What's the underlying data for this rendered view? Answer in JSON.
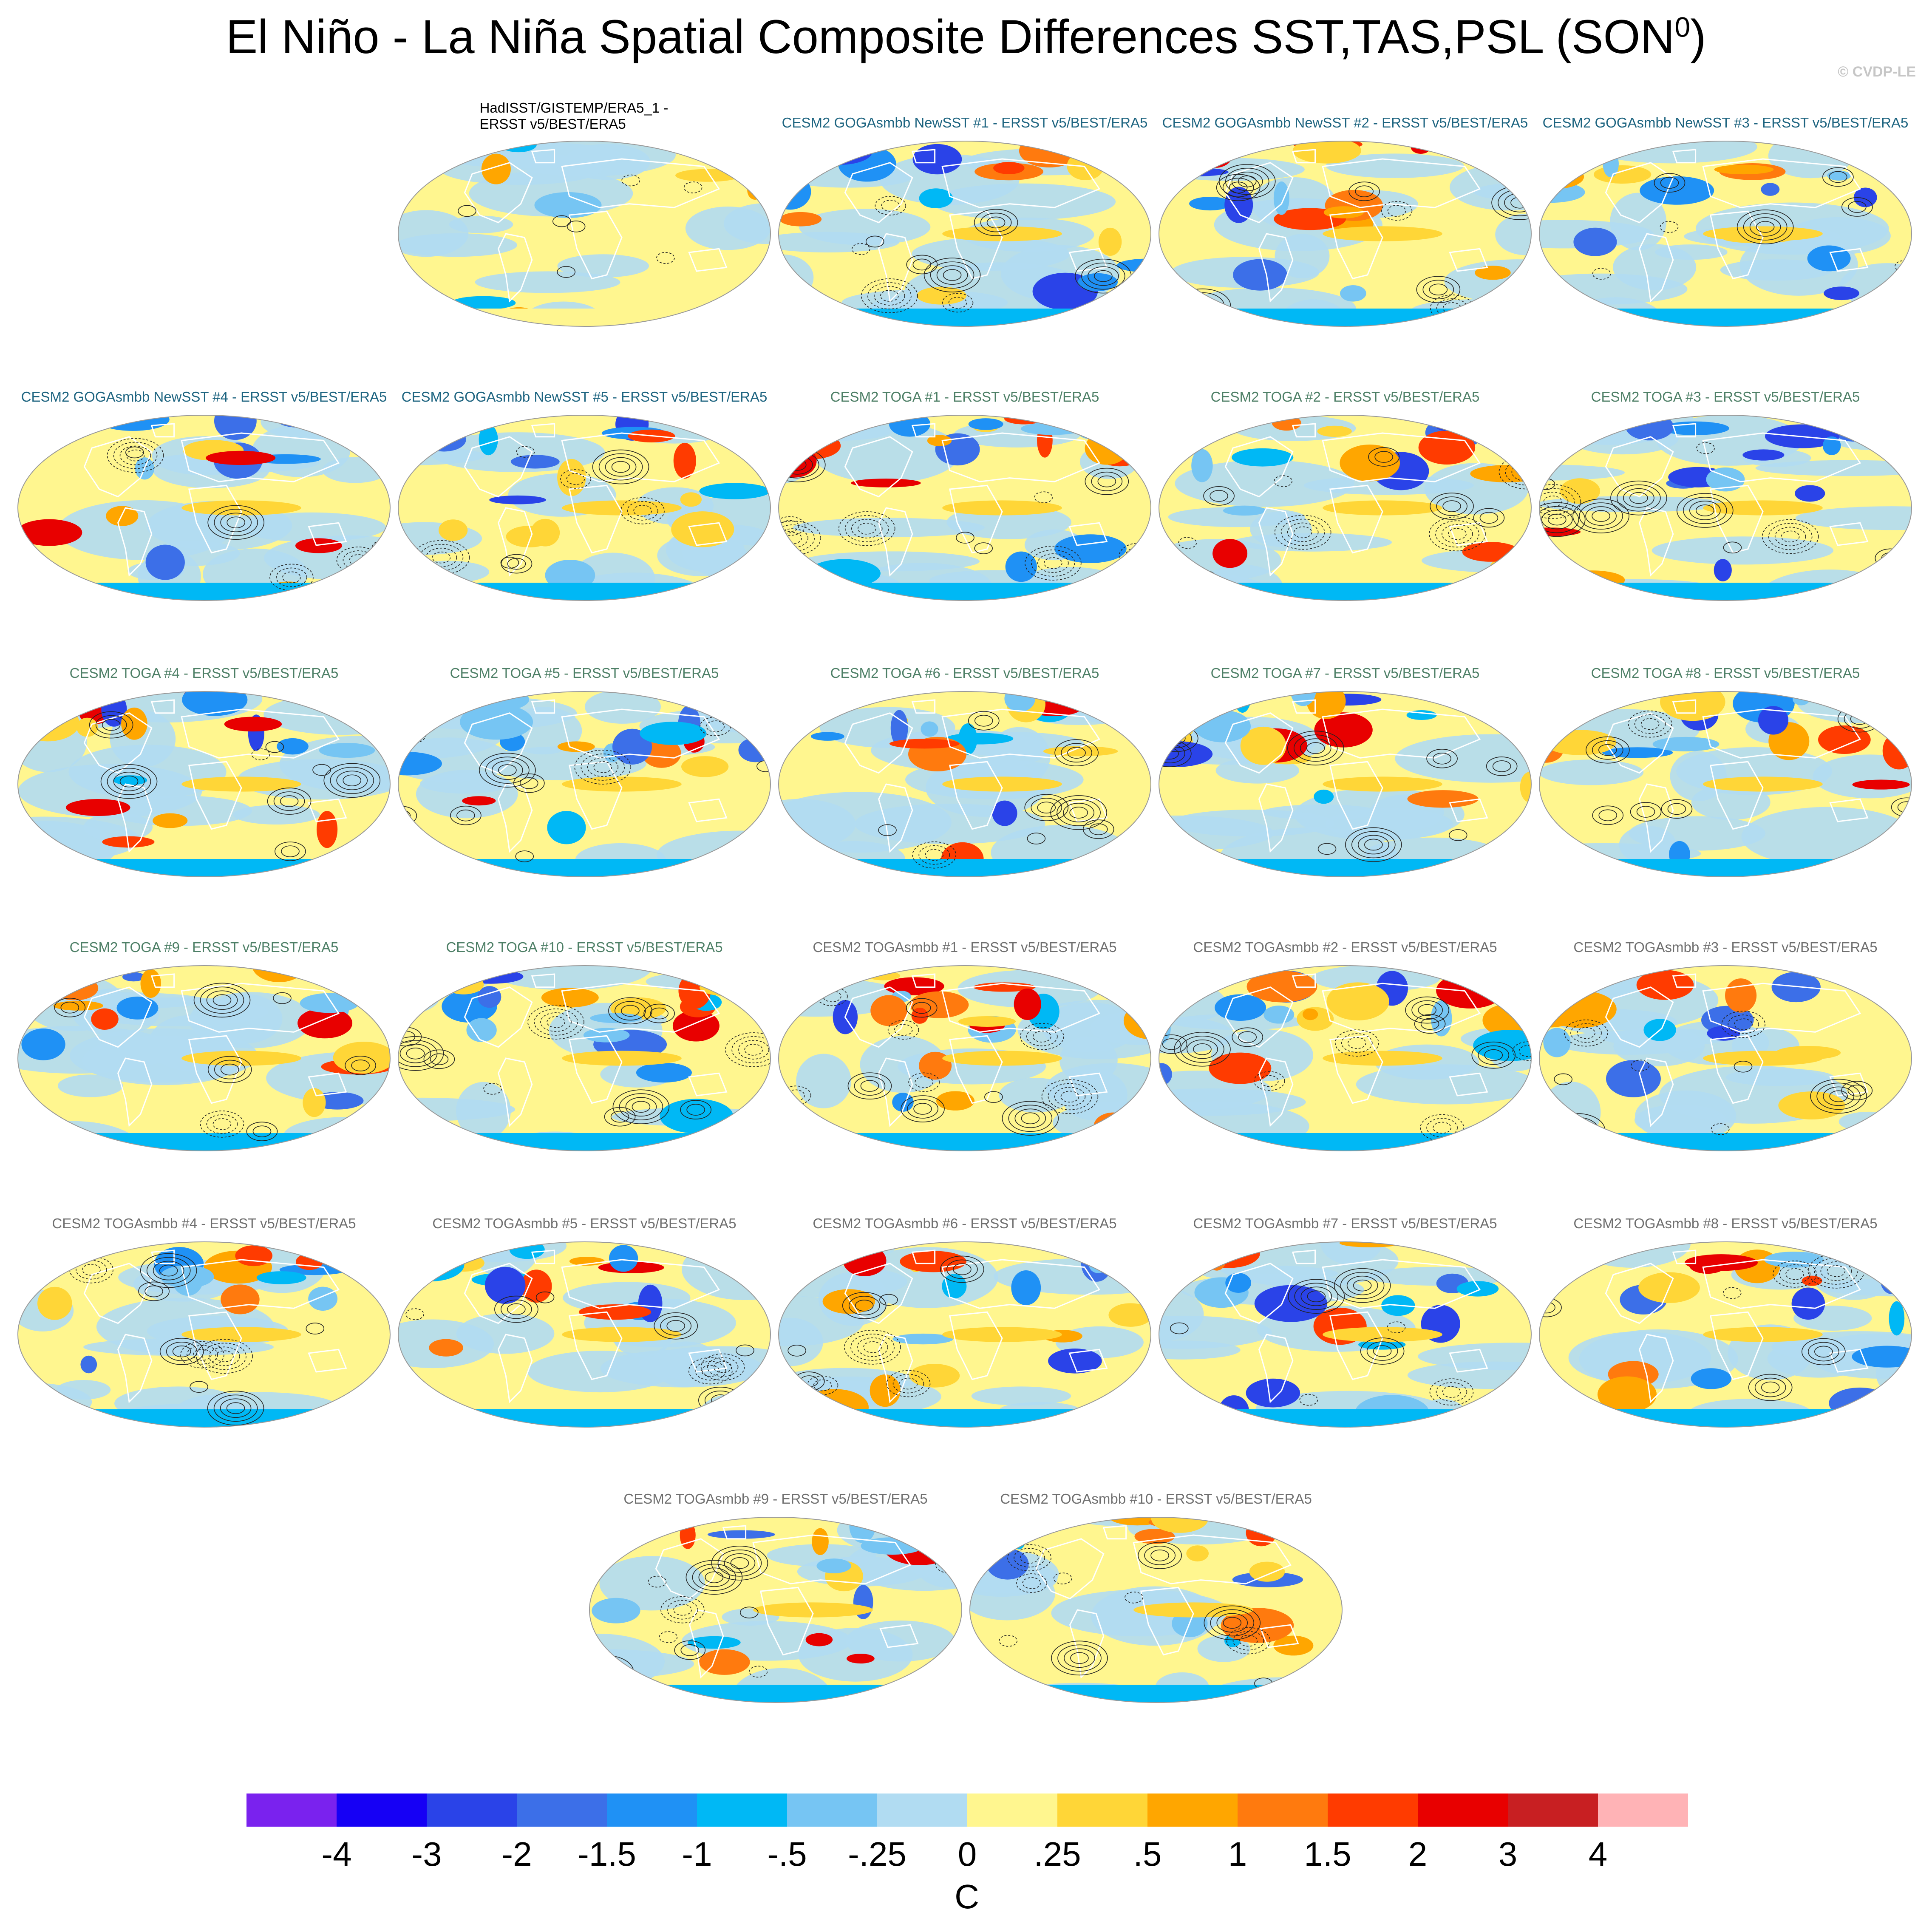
{
  "title": {
    "main": "El Niño - La Niña Spatial Composite Differences SST,TAS,PSL (SON",
    "sup": "0",
    "close": ")"
  },
  "watermark": "© CVDP-LE",
  "colors": {
    "land_outline": "#ffffff",
    "ocean_base": "#fff68f",
    "contour": "#222222"
  },
  "chart_data": {
    "type": "heatmap",
    "projection": "Robinson (global map panels)",
    "panels": [
      {
        "title": "HadISST/GISTEMP/ERA5_1 -\nERSST v5/BEST/ERA5",
        "group": "obs"
      },
      {
        "title": "CESM2 GOGAsmbb NewSST #1 - ERSST v5/BEST/ERA5",
        "group": "goga"
      },
      {
        "title": "CESM2 GOGAsmbb NewSST #2 - ERSST v5/BEST/ERA5",
        "group": "goga"
      },
      {
        "title": "CESM2 GOGAsmbb NewSST #3 - ERSST v5/BEST/ERA5",
        "group": "goga"
      },
      {
        "title": "CESM2 GOGAsmbb NewSST #4 - ERSST v5/BEST/ERA5",
        "group": "goga"
      },
      {
        "title": "CESM2 GOGAsmbb NewSST #5 - ERSST v5/BEST/ERA5",
        "group": "goga"
      },
      {
        "title": "CESM2 TOGA #1 - ERSST v5/BEST/ERA5",
        "group": "toga"
      },
      {
        "title": "CESM2 TOGA #2 - ERSST v5/BEST/ERA5",
        "group": "toga"
      },
      {
        "title": "CESM2 TOGA #3 - ERSST v5/BEST/ERA5",
        "group": "toga"
      },
      {
        "title": "CESM2 TOGA #4 - ERSST v5/BEST/ERA5",
        "group": "toga"
      },
      {
        "title": "CESM2 TOGA #5 - ERSST v5/BEST/ERA5",
        "group": "toga"
      },
      {
        "title": "CESM2 TOGA #6 - ERSST v5/BEST/ERA5",
        "group": "toga"
      },
      {
        "title": "CESM2 TOGA #7 - ERSST v5/BEST/ERA5",
        "group": "toga"
      },
      {
        "title": "CESM2 TOGA #8 - ERSST v5/BEST/ERA5",
        "group": "toga"
      },
      {
        "title": "CESM2 TOGA #9 - ERSST v5/BEST/ERA5",
        "group": "toga"
      },
      {
        "title": "CESM2 TOGA #10 - ERSST v5/BEST/ERA5",
        "group": "toga"
      },
      {
        "title": "CESM2 TOGAsmbb #1 - ERSST v5/BEST/ERA5",
        "group": "togasmbb"
      },
      {
        "title": "CESM2 TOGAsmbb #2 - ERSST v5/BEST/ERA5",
        "group": "togasmbb"
      },
      {
        "title": "CESM2 TOGAsmbb #3 - ERSST v5/BEST/ERA5",
        "group": "togasmbb"
      },
      {
        "title": "CESM2 TOGAsmbb #4 - ERSST v5/BEST/ERA5",
        "group": "togasmbb"
      },
      {
        "title": "CESM2 TOGAsmbb #5 - ERSST v5/BEST/ERA5",
        "group": "togasmbb"
      },
      {
        "title": "CESM2 TOGAsmbb #6 - ERSST v5/BEST/ERA5",
        "group": "togasmbb"
      },
      {
        "title": "CESM2 TOGAsmbb #7 - ERSST v5/BEST/ERA5",
        "group": "togasmbb"
      },
      {
        "title": "CESM2 TOGAsmbb #8 - ERSST v5/BEST/ERA5",
        "group": "togasmbb"
      },
      {
        "title": "CESM2 TOGAsmbb #9 - ERSST v5/BEST/ERA5",
        "group": "togasmbb"
      },
      {
        "title": "CESM2 TOGAsmbb #10 - ERSST v5/BEST/ERA5",
        "group": "togasmbb"
      }
    ],
    "colorbar": {
      "unit": "C",
      "tick_labels": [
        "-4",
        "-3",
        "-2",
        "-1.5",
        "-1",
        "-.5",
        "-.25",
        "0",
        ".25",
        ".5",
        "1",
        "1.5",
        "2",
        "3",
        "4"
      ],
      "colors": [
        "#7a22ee",
        "#1600f5",
        "#2a43e8",
        "#3c6fe8",
        "#1f91f5",
        "#00b8f5",
        "#76c5f3",
        "#b1dcf2",
        "#fff68f",
        "#ffd637",
        "#ffa600",
        "#ff7a0e",
        "#ff3b00",
        "#e80000",
        "#c81f22",
        "#ffb3b6"
      ]
    }
  }
}
